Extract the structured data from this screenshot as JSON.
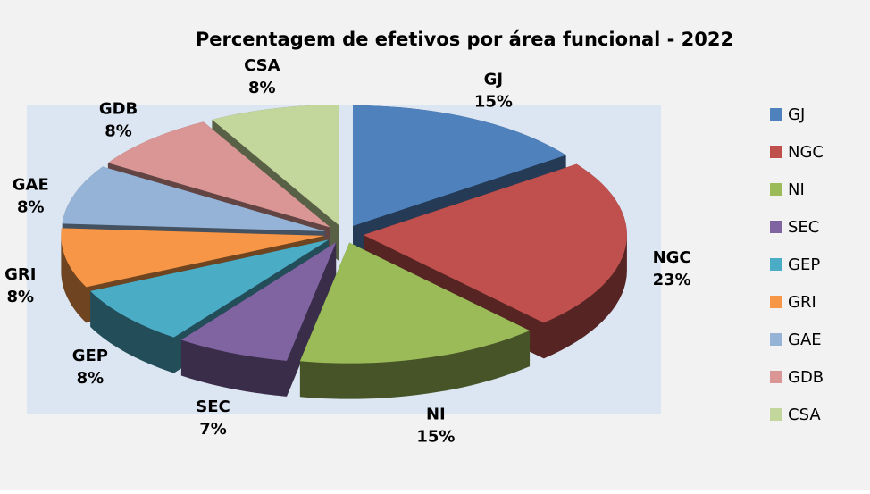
{
  "chart_data": {
    "type": "pie",
    "title": "Percentagem de efetivos por área funcional - 2022",
    "categories": [
      "GJ",
      "NGC",
      "NI",
      "SEC",
      "GEP",
      "GRI",
      "GAE",
      "GDB",
      "CSA"
    ],
    "values": [
      15,
      23,
      15,
      7,
      8,
      8,
      8,
      8,
      8
    ],
    "value_labels": [
      "15%",
      "23%",
      "15%",
      "7%",
      "8%",
      "8%",
      "8%",
      "8%",
      "8%"
    ],
    "colors": [
      "#4f81bd",
      "#c0504d",
      "#9bbb59",
      "#8064a2",
      "#4bacc6",
      "#f79646",
      "#95b3d7",
      "#d99694",
      "#c3d69b"
    ],
    "legend": "right"
  }
}
